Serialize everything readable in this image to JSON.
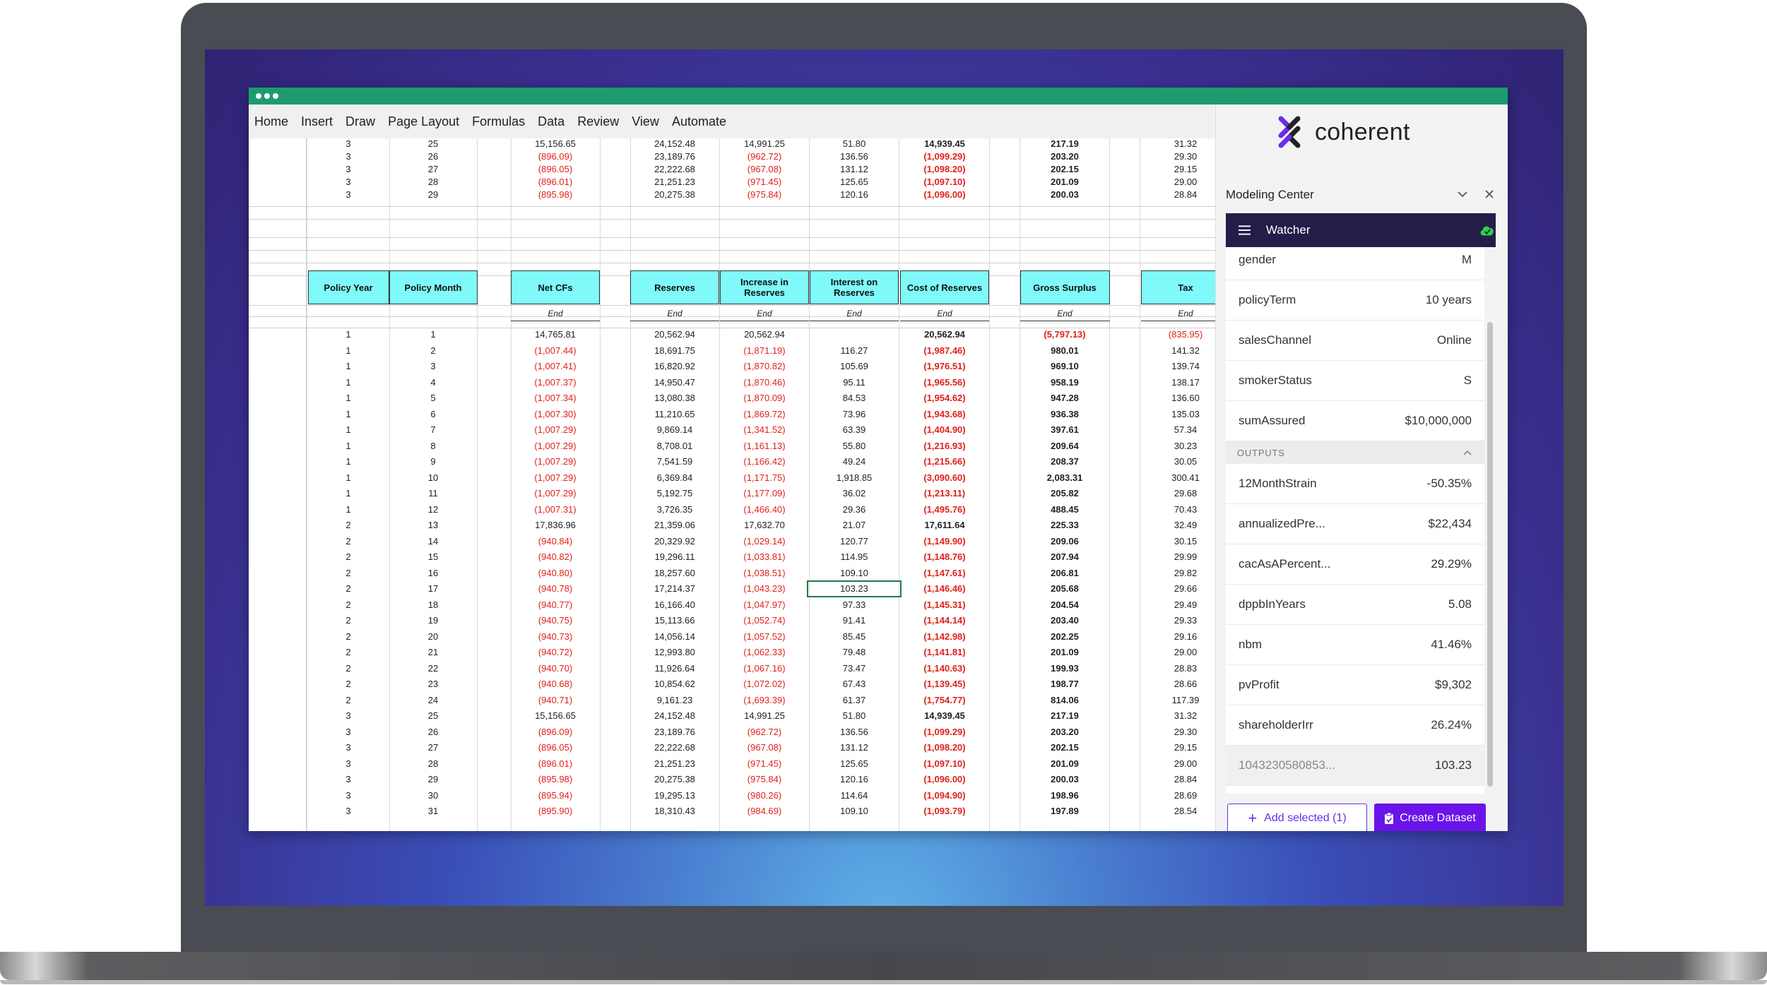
{
  "menu": [
    "Home",
    "Insert",
    "Draw",
    "Page Layout",
    "Formulas",
    "Data",
    "Review",
    "View",
    "Automate"
  ],
  "brand": {
    "name": "coherent"
  },
  "panel": {
    "title": "Modeling Center",
    "watcher_label": "Watcher",
    "inputs": [
      {
        "name": "gender",
        "value": "M"
      },
      {
        "name": "policyTerm",
        "value": "10 years"
      },
      {
        "name": "salesChannel",
        "value": "Online"
      },
      {
        "name": "smokerStatus",
        "value": "S"
      },
      {
        "name": "sumAssured",
        "value": "$10,000,000"
      }
    ],
    "outputs_label": "OUTPUTS",
    "outputs": [
      {
        "name": "12MonthStrain",
        "value": "-50.35%"
      },
      {
        "name": "annualizedPre...",
        "value": "$22,434"
      },
      {
        "name": "cacAsAPercent...",
        "value": "29.29%"
      },
      {
        "name": "dppbInYears",
        "value": "5.08"
      },
      {
        "name": "nbm",
        "value": "41.46%"
      },
      {
        "name": "pvProfit",
        "value": "$9,302"
      },
      {
        "name": "shareholderIrr",
        "value": "26.24%"
      },
      {
        "name": "1043230580853...",
        "value": "103.23"
      }
    ],
    "add_selected_label": "Add selected (1)",
    "create_dataset_label": "Create Dataset"
  },
  "sheet": {
    "headers": [
      "Policy Year",
      "Policy Month",
      "Net CFs",
      "Reserves",
      "Increase in Reserves",
      "Interest on Reserves",
      "Cost of Reserves",
      "Gross Surplus",
      "Tax"
    ],
    "end_label": "End",
    "top_rows": [
      [
        "3",
        "25",
        "15,156.65",
        "24,152.48",
        "14,991.25",
        "51.80",
        "14,939.45",
        "217.19",
        "31.32"
      ],
      [
        "3",
        "26",
        "(896.09)",
        "23,189.76",
        "(962.72)",
        "136.56",
        "(1,099.29)",
        "203.20",
        "29.30"
      ],
      [
        "3",
        "27",
        "(896.05)",
        "22,222.68",
        "(967.08)",
        "131.12",
        "(1,098.20)",
        "202.15",
        "29.15"
      ],
      [
        "3",
        "28",
        "(896.01)",
        "21,251.23",
        "(971.45)",
        "125.65",
        "(1,097.10)",
        "201.09",
        "29.00"
      ],
      [
        "3",
        "29",
        "(895.98)",
        "20,275.38",
        "(975.84)",
        "120.16",
        "(1,096.00)",
        "200.03",
        "28.84"
      ]
    ],
    "rows": [
      [
        "1",
        "1",
        "14,765.81",
        "20,562.94",
        "20,562.94",
        "",
        "20,562.94",
        "(5,797.13)",
        "(835.95)"
      ],
      [
        "1",
        "2",
        "(1,007.44)",
        "18,691.75",
        "(1,871.19)",
        "116.27",
        "(1,987.46)",
        "980.01",
        "141.32"
      ],
      [
        "1",
        "3",
        "(1,007.41)",
        "16,820.92",
        "(1,870.82)",
        "105.69",
        "(1,976.51)",
        "969.10",
        "139.74"
      ],
      [
        "1",
        "4",
        "(1,007.37)",
        "14,950.47",
        "(1,870.46)",
        "95.11",
        "(1,965.56)",
        "958.19",
        "138.17"
      ],
      [
        "1",
        "5",
        "(1,007.34)",
        "13,080.38",
        "(1,870.09)",
        "84.53",
        "(1,954.62)",
        "947.28",
        "136.60"
      ],
      [
        "1",
        "6",
        "(1,007.30)",
        "11,210.65",
        "(1,869.72)",
        "73.96",
        "(1,943.68)",
        "936.38",
        "135.03"
      ],
      [
        "1",
        "7",
        "(1,007.29)",
        "9,869.14",
        "(1,341.52)",
        "63.39",
        "(1,404.90)",
        "397.61",
        "57.34"
      ],
      [
        "1",
        "8",
        "(1,007.29)",
        "8,708.01",
        "(1,161.13)",
        "55.80",
        "(1,216.93)",
        "209.64",
        "30.23"
      ],
      [
        "1",
        "9",
        "(1,007.29)",
        "7,541.59",
        "(1,166.42)",
        "49.24",
        "(1,215.66)",
        "208.37",
        "30.05"
      ],
      [
        "1",
        "10",
        "(1,007.29)",
        "6,369.84",
        "(1,171.75)",
        "1,918.85",
        "(3,090.60)",
        "2,083.31",
        "300.41"
      ],
      [
        "1",
        "11",
        "(1,007.29)",
        "5,192.75",
        "(1,177.09)",
        "36.02",
        "(1,213.11)",
        "205.82",
        "29.68"
      ],
      [
        "1",
        "12",
        "(1,007.31)",
        "3,726.35",
        "(1,466.40)",
        "29.36",
        "(1,495.76)",
        "488.45",
        "70.43"
      ],
      [
        "2",
        "13",
        "17,836.96",
        "21,359.06",
        "17,632.70",
        "21.07",
        "17,611.64",
        "225.33",
        "32.49"
      ],
      [
        "2",
        "14",
        "(940.84)",
        "20,329.92",
        "(1,029.14)",
        "120.77",
        "(1,149.90)",
        "209.06",
        "30.15"
      ],
      [
        "2",
        "15",
        "(940.82)",
        "19,296.11",
        "(1,033.81)",
        "114.95",
        "(1,148.76)",
        "207.94",
        "29.99"
      ],
      [
        "2",
        "16",
        "(940.80)",
        "18,257.60",
        "(1,038.51)",
        "109.10",
        "(1,147.61)",
        "206.81",
        "29.82"
      ],
      [
        "2",
        "17",
        "(940.78)",
        "17,214.37",
        "(1,043.23)",
        "103.23",
        "(1,146.46)",
        "205.68",
        "29.66"
      ],
      [
        "2",
        "18",
        "(940.77)",
        "16,166.40",
        "(1,047.97)",
        "97.33",
        "(1,145.31)",
        "204.54",
        "29.49"
      ],
      [
        "2",
        "19",
        "(940.75)",
        "15,113.66",
        "(1,052.74)",
        "91.41",
        "(1,144.14)",
        "203.40",
        "29.33"
      ],
      [
        "2",
        "20",
        "(940.73)",
        "14,056.14",
        "(1,057.52)",
        "85.45",
        "(1,142.98)",
        "202.25",
        "29.16"
      ],
      [
        "2",
        "21",
        "(940.72)",
        "12,993.80",
        "(1,062.33)",
        "79.48",
        "(1,141.81)",
        "201.09",
        "29.00"
      ],
      [
        "2",
        "22",
        "(940.70)",
        "11,926.64",
        "(1,067.16)",
        "73.47",
        "(1,140.63)",
        "199.93",
        "28.83"
      ],
      [
        "2",
        "23",
        "(940.68)",
        "10,854.62",
        "(1,072.02)",
        "67.43",
        "(1,139.45)",
        "198.77",
        "28.66"
      ],
      [
        "2",
        "24",
        "(940.71)",
        "9,161.23",
        "(1,693.39)",
        "61.37",
        "(1,754.77)",
        "814.06",
        "117.39"
      ],
      [
        "3",
        "25",
        "15,156.65",
        "24,152.48",
        "14,991.25",
        "51.80",
        "14,939.45",
        "217.19",
        "31.32"
      ],
      [
        "3",
        "26",
        "(896.09)",
        "23,189.76",
        "(962.72)",
        "136.56",
        "(1,099.29)",
        "203.20",
        "29.30"
      ],
      [
        "3",
        "27",
        "(896.05)",
        "22,222.68",
        "(967.08)",
        "131.12",
        "(1,098.20)",
        "202.15",
        "29.15"
      ],
      [
        "3",
        "28",
        "(896.01)",
        "21,251.23",
        "(971.45)",
        "125.65",
        "(1,097.10)",
        "201.09",
        "29.00"
      ],
      [
        "3",
        "29",
        "(895.98)",
        "20,275.38",
        "(975.84)",
        "120.16",
        "(1,096.00)",
        "200.03",
        "28.84"
      ],
      [
        "3",
        "30",
        "(895.94)",
        "19,295.13",
        "(980.26)",
        "114.64",
        "(1,094.90)",
        "198.96",
        "28.69"
      ],
      [
        "3",
        "31",
        "(895.90)",
        "18,310.43",
        "(984.69)",
        "109.10",
        "(1,093.79)",
        "197.89",
        "28.54"
      ]
    ]
  },
  "colors": {
    "accent": "#6a14ea",
    "titlebar": "#1e9b6c",
    "header_fill": "#7ff9fa",
    "negative": "#e0201a",
    "watcher_bar": "#231d4a"
  }
}
